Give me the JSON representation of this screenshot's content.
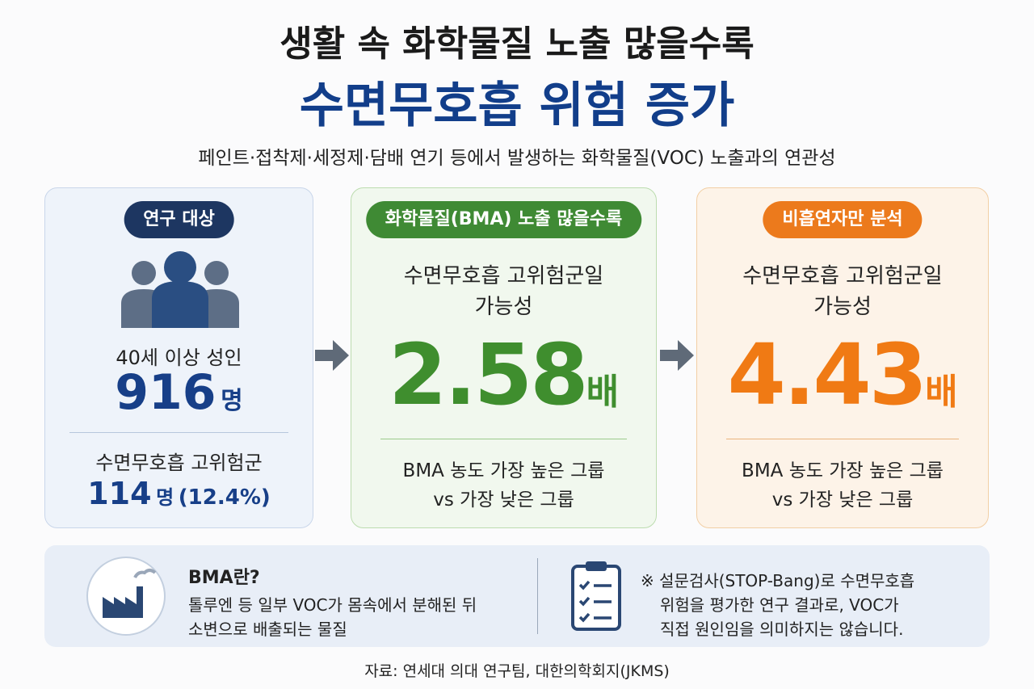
{
  "header": {
    "title_line1": "생활 속 화학물질 노출 많을수록",
    "title_line2": "수면무호흡 위험 증가",
    "subtitle": "페인트·접착제·세정제·담배 연기 등에서 발생하는 화학물질(VOC) 노출과의 연관성"
  },
  "cards": [
    {
      "badge": "연구 대상",
      "label": "40세 이상 성인",
      "count": 916,
      "count_unit": "명",
      "sub_label": "수면무호흡 고위험군",
      "sub_count": 114,
      "sub_unit": "명",
      "sub_percent": "(12.4%)"
    },
    {
      "badge": "화학물질(BMA) 노출 많을수록",
      "line1": "수면무호흡 고위험군일",
      "line2": "가능성",
      "ratio": 2.58,
      "ratio_unit": "배",
      "note1": "BMA 농도 가장 높은 그룹",
      "note2": "vs 가장 낮은 그룹"
    },
    {
      "badge": "비흡연자만 분석",
      "line1": "수면무호흡 고위험군일",
      "line2": "가능성",
      "ratio": 4.43,
      "ratio_unit": "배",
      "note1": "BMA 농도 가장 높은 그룹",
      "note2": "vs 가장 낮은 그룹"
    }
  ],
  "info": {
    "heading": "BMA란?",
    "desc1": "톨루엔 등 일부 VOC가 몸속에서 분해된 뒤",
    "desc2": "소변으로 배출되는 물질",
    "note1": "※ 설문검사(STOP-Bang)로 수면무호흡",
    "note2": "위험을 평가한 연구 결과로, VOC가",
    "note3": "직접 원인임을 의미하지는 않습니다."
  },
  "source": "자료: 연세대 의대 연구팀, 대한의학회지(JKMS)"
}
